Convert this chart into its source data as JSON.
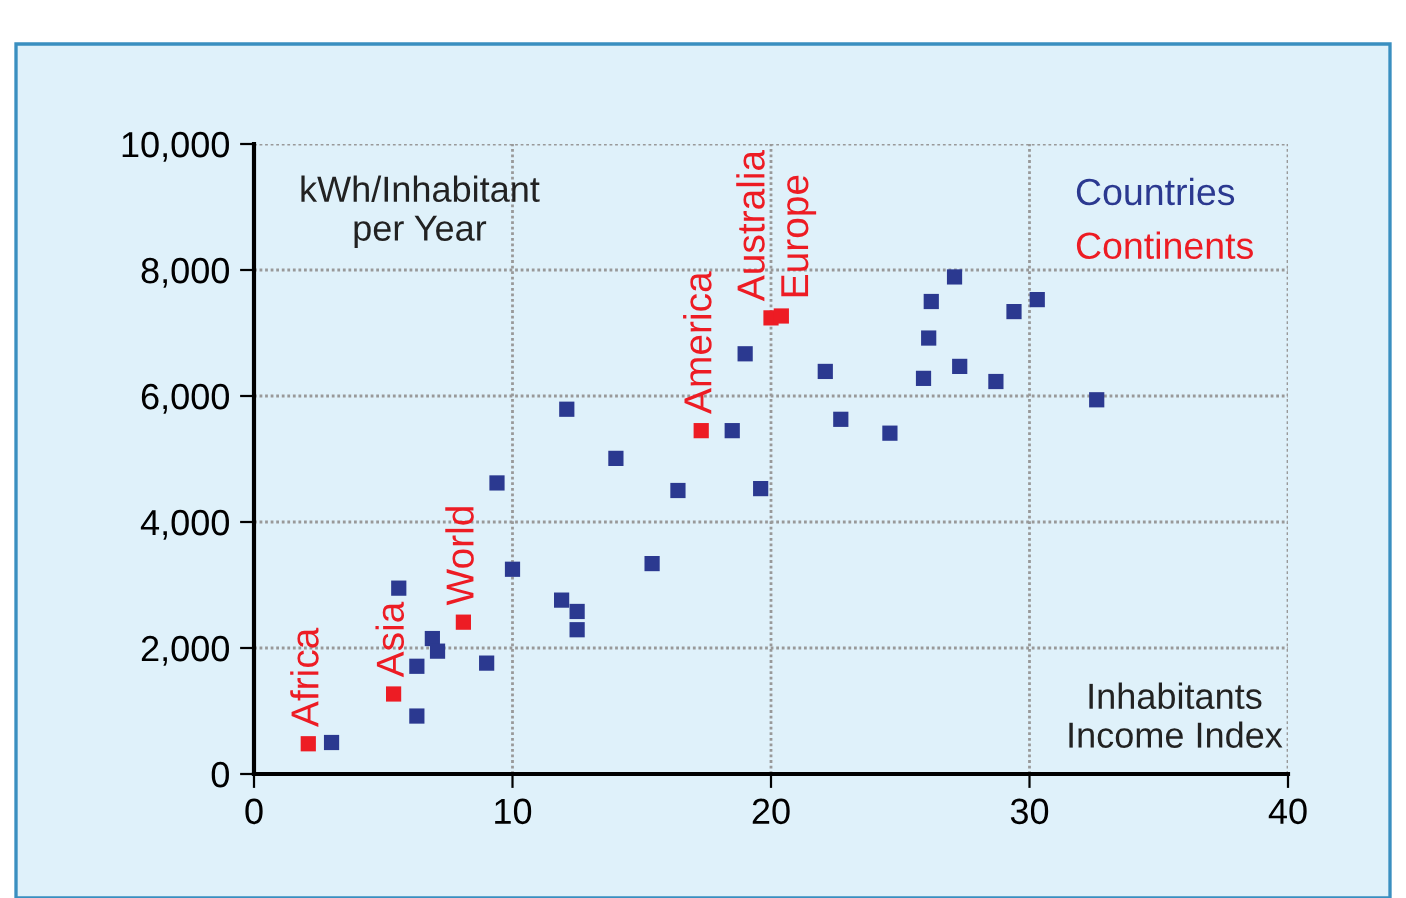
{
  "chart_data": {
    "type": "scatter",
    "xlabel": "Inhabitants\nIncome Index",
    "ylabel": "kWh/Inhabitant\nper Year",
    "series": [
      {
        "name": "Countries",
        "color": "#2b3990",
        "x": [
          3.0,
          5.6,
          6.3,
          6.3,
          6.9,
          7.1,
          9.0,
          9.4,
          10.0,
          11.9,
          12.5,
          12.5,
          12.1,
          14.0,
          15.4,
          16.4,
          18.5,
          19.0,
          19.6,
          22.1,
          22.7,
          24.6,
          25.9,
          26.1,
          26.2,
          27.1,
          27.3,
          28.7,
          29.4,
          30.3,
          32.6
        ],
        "values": [
          500,
          2950,
          920,
          1710,
          2150,
          1950,
          1760,
          4620,
          3250,
          2760,
          2580,
          2290,
          5790,
          5010,
          3340,
          4500,
          5450,
          6670,
          4530,
          6390,
          5630,
          5410,
          6280,
          6920,
          7500,
          7890,
          6470,
          6230,
          7340,
          7530,
          5940
        ]
      },
      {
        "name": "Continents",
        "color": "#ed1c24",
        "x": [
          2.1,
          5.4,
          8.1,
          17.3,
          20.0,
          20.4
        ],
        "values": [
          480,
          1270,
          2410,
          5450,
          7240,
          7270
        ]
      }
    ],
    "annotations": [
      {
        "text": "Africa",
        "x": 2.1,
        "y": 480
      },
      {
        "text": "Asia",
        "x": 5.4,
        "y": 1270
      },
      {
        "text": "World",
        "x": 8.1,
        "y": 2410
      },
      {
        "text": "America",
        "x": 17.3,
        "y": 5450
      },
      {
        "text": "Australia",
        "x": 20.0,
        "y": 7240
      },
      {
        "text": "Europe",
        "x": 20.4,
        "y": 7270
      }
    ],
    "xlim": [
      0,
      40
    ],
    "xticks": [
      0,
      10,
      20,
      30,
      40
    ],
    "ylim": [
      0,
      10000
    ],
    "yticks": [
      0,
      {
        "value": 2000,
        "label": "2,000"
      },
      {
        "value": 4000,
        "label": "4,000"
      },
      {
        "value": 6000,
        "label": "6,000"
      },
      {
        "value": 8000,
        "label": "8,000"
      },
      {
        "value": 10000,
        "label": "10,000"
      }
    ],
    "grid": true,
    "legend": "top right",
    "marker": "square"
  }
}
